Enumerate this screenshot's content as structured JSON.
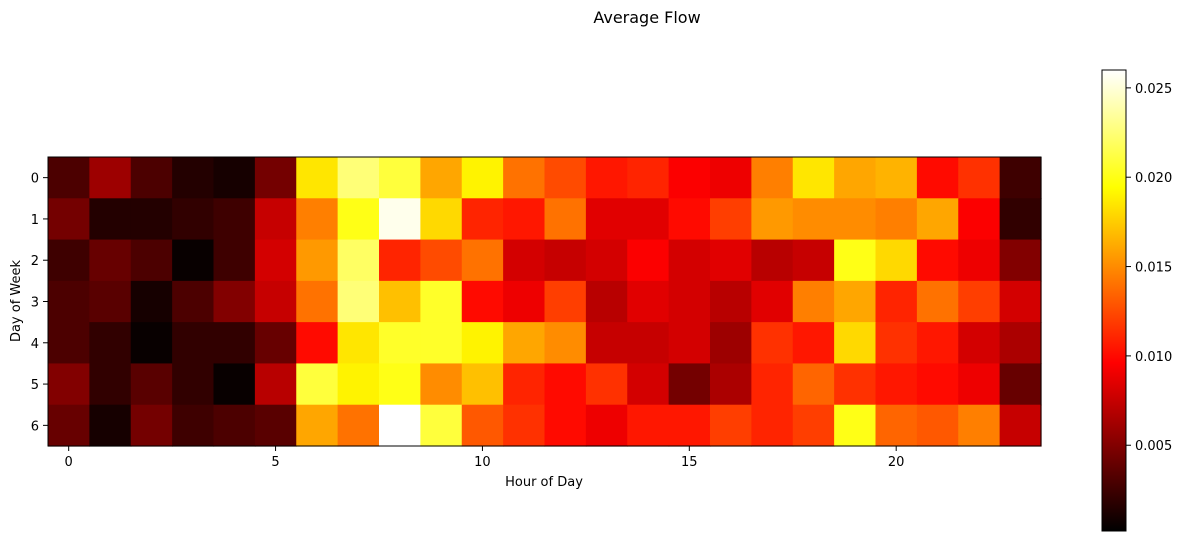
{
  "chart_data": {
    "type": "heatmap",
    "title": "Average Flow",
    "xlabel": "Hour of Day",
    "ylabel": "Day of Week",
    "colormap": "hot",
    "x": [
      0,
      1,
      2,
      3,
      4,
      5,
      6,
      7,
      8,
      9,
      10,
      11,
      12,
      13,
      14,
      15,
      16,
      17,
      18,
      19,
      20,
      21,
      22,
      23
    ],
    "y": [
      0,
      1,
      2,
      3,
      4,
      5,
      6
    ],
    "xticks": [
      0,
      5,
      10,
      15,
      20
    ],
    "yticks": [
      0,
      1,
      2,
      3,
      4,
      5,
      6
    ],
    "xtick_labels": [
      "0",
      "5",
      "10",
      "15",
      "20"
    ],
    "ytick_labels": [
      "0",
      "1",
      "2",
      "3",
      "4",
      "5",
      "6"
    ],
    "vmin": 0.0002,
    "vmax": 0.026,
    "colorbar_ticks": [
      0.005,
      0.01,
      0.015,
      0.02,
      0.025
    ],
    "colorbar_tick_labels": [
      "0.005",
      "0.010",
      "0.015",
      "0.020",
      "0.025"
    ],
    "values": [
      [
        0.003,
        0.006,
        0.003,
        0.0015,
        0.001,
        0.0045,
        0.0185,
        0.0225,
        0.021,
        0.016,
        0.019,
        0.014,
        0.0125,
        0.0105,
        0.011,
        0.0095,
        0.009,
        0.0145,
        0.0185,
        0.016,
        0.0165,
        0.01,
        0.0115,
        0.0025
      ],
      [
        0.0045,
        0.0015,
        0.0015,
        0.002,
        0.0025,
        0.0075,
        0.0145,
        0.02,
        0.0255,
        0.018,
        0.011,
        0.0105,
        0.014,
        0.0085,
        0.0085,
        0.01,
        0.012,
        0.0155,
        0.015,
        0.015,
        0.0145,
        0.016,
        0.0095,
        0.002
      ],
      [
        0.0025,
        0.004,
        0.003,
        0.0005,
        0.0025,
        0.008,
        0.0155,
        0.022,
        0.011,
        0.0125,
        0.014,
        0.008,
        0.0075,
        0.008,
        0.0095,
        0.008,
        0.0085,
        0.007,
        0.0075,
        0.02,
        0.018,
        0.01,
        0.009,
        0.005
      ],
      [
        0.003,
        0.0035,
        0.001,
        0.003,
        0.005,
        0.0075,
        0.014,
        0.0225,
        0.017,
        0.0205,
        0.01,
        0.009,
        0.012,
        0.007,
        0.0085,
        0.008,
        0.007,
        0.0085,
        0.0145,
        0.016,
        0.011,
        0.014,
        0.012,
        0.008
      ],
      [
        0.003,
        0.002,
        0.0005,
        0.002,
        0.002,
        0.004,
        0.01,
        0.0185,
        0.0205,
        0.0205,
        0.019,
        0.016,
        0.015,
        0.0075,
        0.0075,
        0.008,
        0.006,
        0.0115,
        0.0105,
        0.018,
        0.0115,
        0.0105,
        0.008,
        0.0065
      ],
      [
        0.005,
        0.002,
        0.0035,
        0.002,
        0.0005,
        0.007,
        0.021,
        0.019,
        0.02,
        0.015,
        0.017,
        0.011,
        0.01,
        0.0115,
        0.008,
        0.0045,
        0.0065,
        0.011,
        0.0135,
        0.0115,
        0.0105,
        0.01,
        0.009,
        0.004
      ],
      [
        0.004,
        0.001,
        0.0045,
        0.0025,
        0.003,
        0.0035,
        0.016,
        0.014,
        0.026,
        0.021,
        0.013,
        0.0115,
        0.01,
        0.009,
        0.0105,
        0.0105,
        0.012,
        0.011,
        0.012,
        0.02,
        0.0135,
        0.013,
        0.0145,
        0.0075
      ]
    ]
  }
}
